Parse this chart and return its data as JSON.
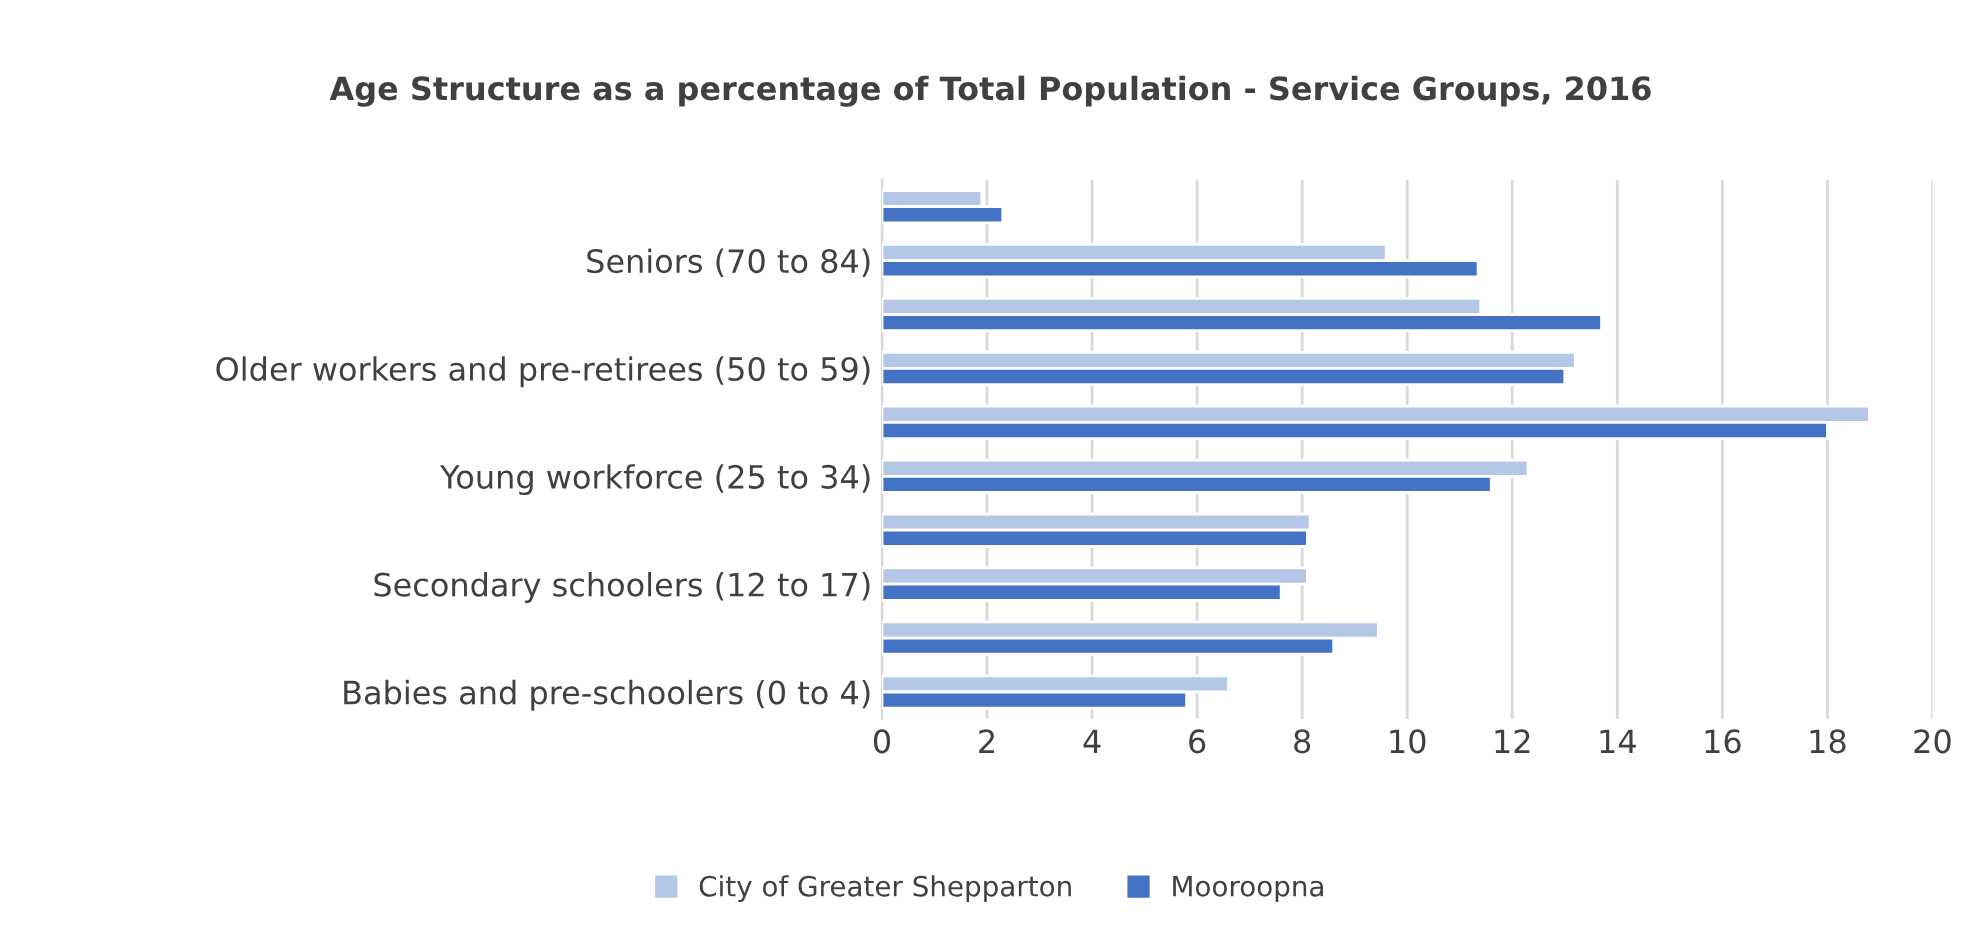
{
  "chart_data": {
    "type": "bar",
    "orientation": "horizontal",
    "title": "Age Structure as a percentage of Total Population - Service Groups, 2016",
    "categories": [
      null,
      "Seniors (70 to 84)",
      null,
      "Older workers and pre-retirees (50 to 59)",
      null,
      "Young workforce (25 to 34)",
      null,
      "Secondary schoolers (12 to 17)",
      null,
      "Babies and pre-schoolers (0 to 4)"
    ],
    "series": [
      {
        "name": "City of Greater Shepparton",
        "color": "#b4c7e7",
        "values": [
          1.9,
          9.6,
          11.4,
          13.2,
          18.8,
          12.3,
          8.15,
          8.1,
          9.45,
          6.6
        ]
      },
      {
        "name": "Mooroopna",
        "color": "#4472c4",
        "values": [
          2.3,
          11.35,
          13.7,
          13.0,
          18.0,
          11.6,
          8.1,
          7.6,
          8.6,
          5.8
        ]
      }
    ],
    "xlim": [
      0,
      20
    ],
    "xticks": [
      0,
      2,
      4,
      6,
      8,
      10,
      12,
      14,
      16,
      18,
      20
    ],
    "grid": "x",
    "legend": "bottom"
  }
}
